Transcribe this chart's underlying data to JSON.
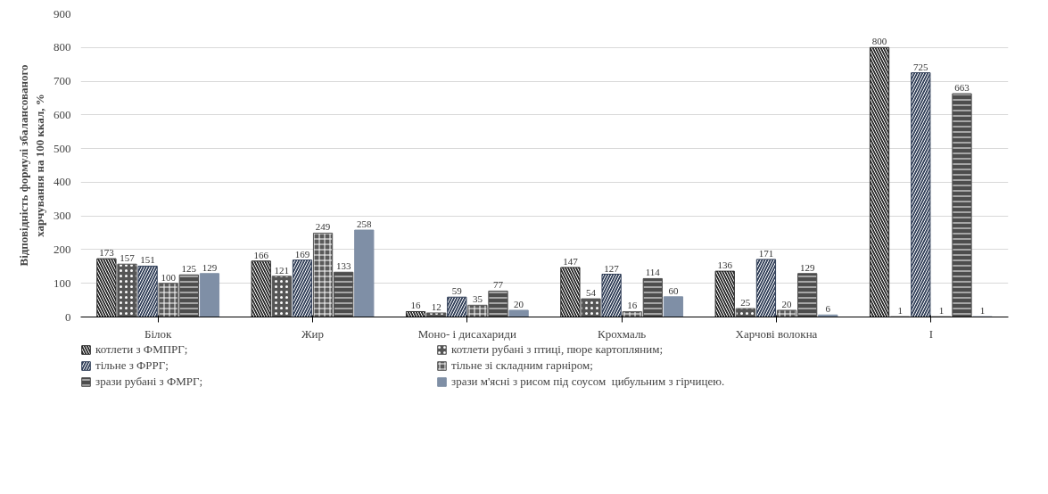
{
  "chart_data": {
    "type": "bar",
    "ylabel": "Відповідність формулі збалансованого харчування на 100 ккал, %",
    "categories": [
      "Білок",
      "Жир",
      "Моно- і дисахариди",
      "Крохмаль",
      "Харчові волокна",
      "I"
    ],
    "series": [
      {
        "name": "котлети з ФМПРГ;",
        "color": "#2b2b2b",
        "values": [
          173,
          166,
          16,
          147,
          136,
          800
        ]
      },
      {
        "name": "котлети рубані з птиці, пюре картопляним;",
        "color": "#555555",
        "values": [
          157,
          121,
          12,
          54,
          25,
          1
        ]
      },
      {
        "name": "тільне з ФРРГ;",
        "color": "#33415a",
        "values": [
          151,
          169,
          59,
          127,
          171,
          725
        ]
      },
      {
        "name": "тільне зі складним гарніром;",
        "color": "#5a5a5a",
        "values": [
          100,
          249,
          35,
          16,
          20,
          1
        ]
      },
      {
        "name": "зрази рубані з ФМРГ;",
        "color": "#4d4d4d",
        "values": [
          125,
          133,
          77,
          114,
          129,
          663
        ]
      },
      {
        "name": "зрази м'ясні з рисом під соусом  цибульним з гірчицею.",
        "color": "#7f8fa6",
        "values": [
          129,
          258,
          20,
          60,
          6,
          1
        ]
      }
    ],
    "ylim": [
      0,
      900
    ],
    "yticks": [
      0,
      100,
      200,
      300,
      400,
      500,
      600,
      700,
      800,
      900
    ],
    "grid": "y",
    "legend": "bottom",
    "data_labels": true
  }
}
